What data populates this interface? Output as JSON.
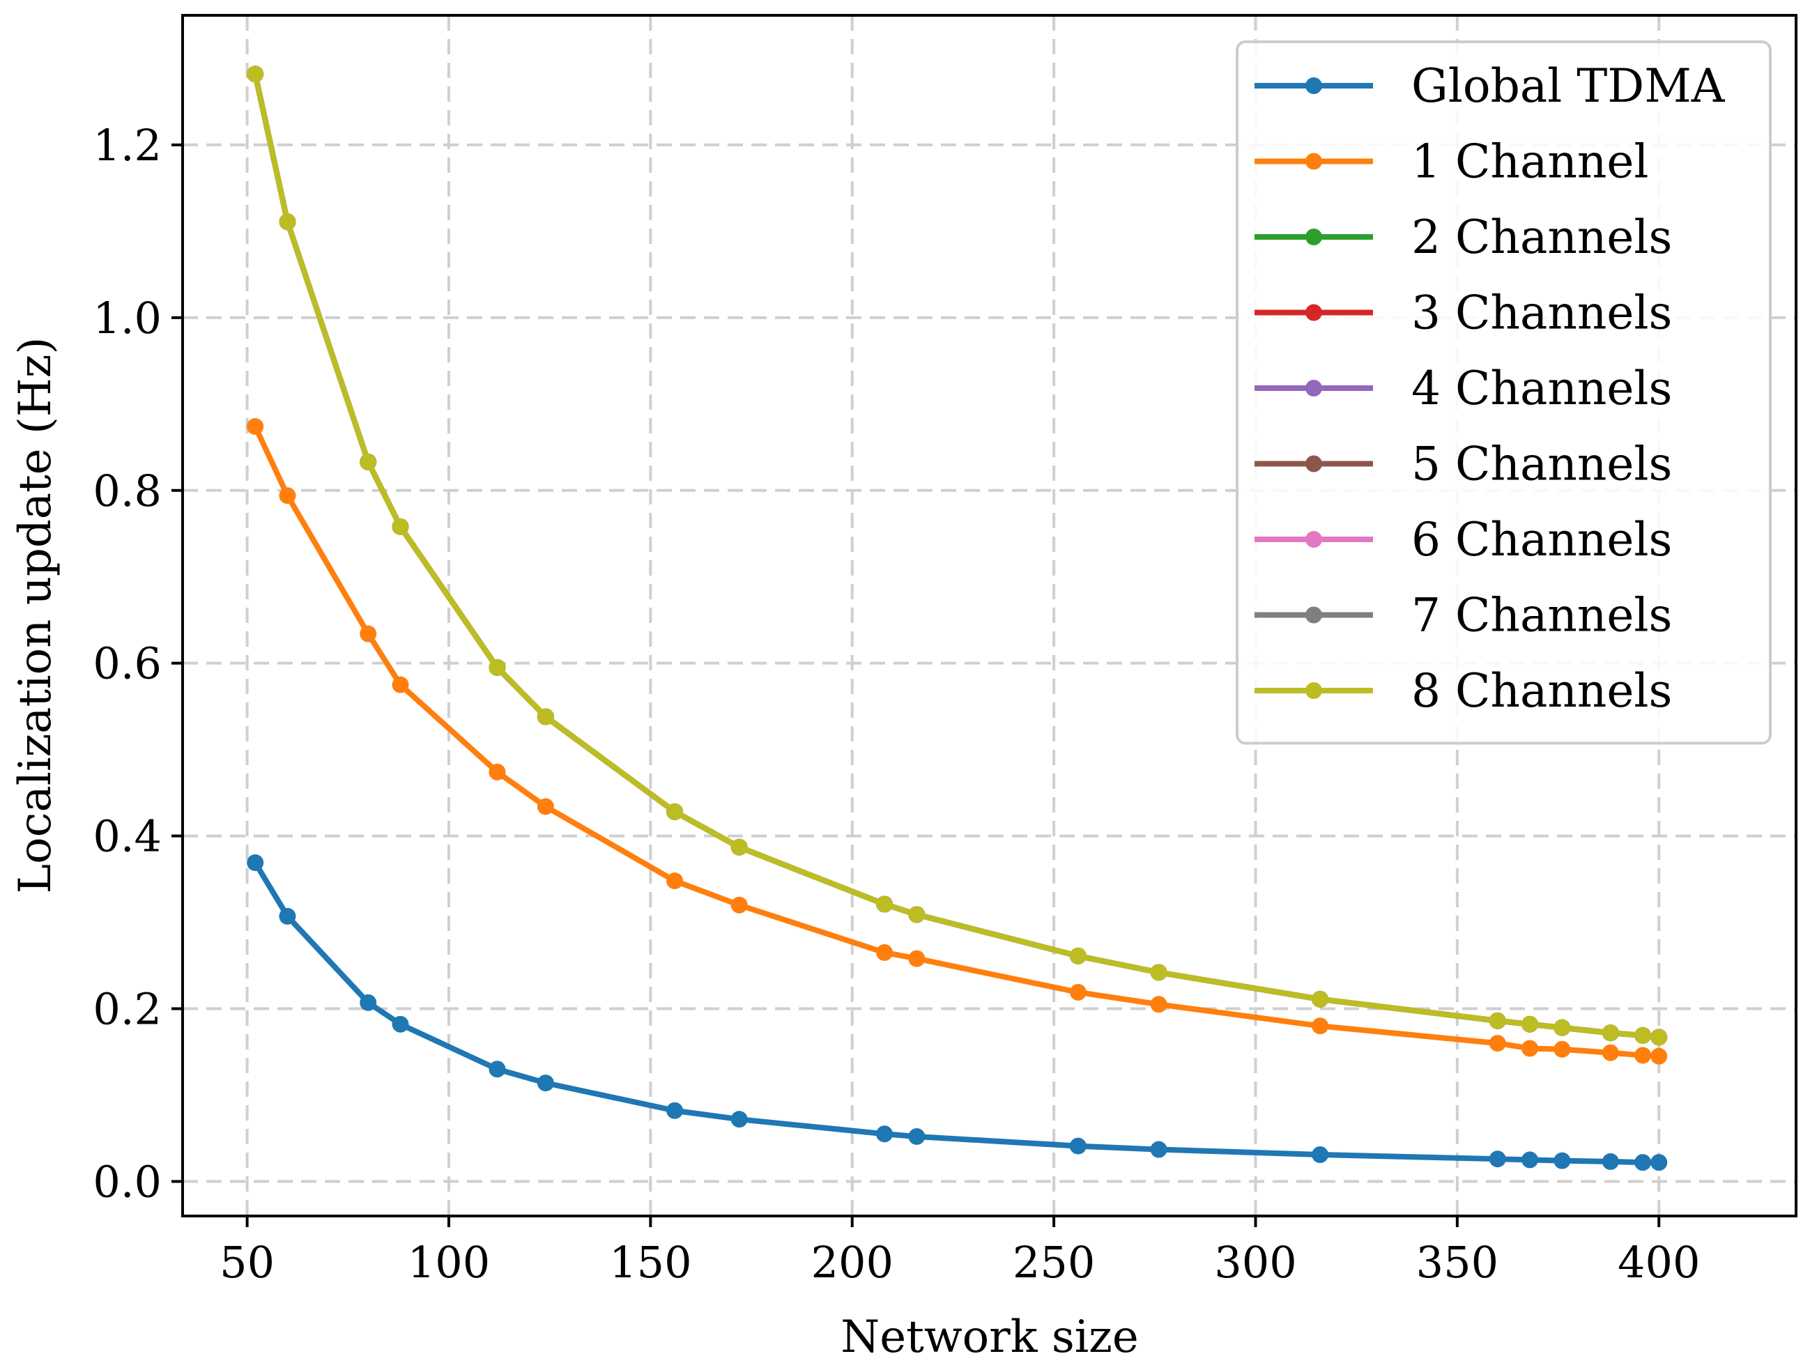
{
  "chart_data": {
    "type": "line",
    "xlabel": "Network size",
    "ylabel": "Localization update (Hz)",
    "xlim": [
      34,
      434
    ],
    "ylim": [
      -0.04,
      1.35
    ],
    "x_ticks": [
      "50",
      "100",
      "150",
      "200",
      "250",
      "300",
      "350",
      "400"
    ],
    "y_ticks": [
      "0.0",
      "0.2",
      "0.4",
      "0.6",
      "0.8",
      "1.0",
      "1.2"
    ],
    "grid": true,
    "legend_position": "top-right",
    "x": [
      52,
      60,
      80,
      88,
      112,
      124,
      156,
      172,
      208,
      216,
      256,
      276,
      316,
      360,
      368,
      376,
      388,
      396,
      400
    ],
    "series": [
      {
        "name": "Global TDMA",
        "color": "#1f77b4",
        "values": [
          0.369,
          0.307,
          0.207,
          0.182,
          0.13,
          0.114,
          0.082,
          0.072,
          0.055,
          0.052,
          0.041,
          0.037,
          0.031,
          0.026,
          0.025,
          0.024,
          0.023,
          0.022,
          0.022
        ]
      },
      {
        "name": "1 Channel",
        "color": "#ff7f0e",
        "values": [
          0.874,
          0.794,
          0.634,
          0.575,
          0.474,
          0.434,
          0.348,
          0.32,
          0.265,
          0.258,
          0.219,
          0.205,
          0.18,
          0.16,
          0.154,
          0.153,
          0.149,
          0.146,
          0.145
        ]
      },
      {
        "name": "2 Channels",
        "color": "#2ca02c",
        "values": [
          1.282,
          1.111,
          0.833,
          0.758,
          0.595,
          0.538,
          0.428,
          0.387,
          0.321,
          0.309,
          0.261,
          0.242,
          0.211,
          0.186,
          0.182,
          0.178,
          0.172,
          0.169,
          0.167
        ]
      },
      {
        "name": "3 Channels",
        "color": "#d62728",
        "values": [
          1.282,
          1.111,
          0.833,
          0.758,
          0.595,
          0.538,
          0.428,
          0.387,
          0.321,
          0.309,
          0.261,
          0.242,
          0.211,
          0.186,
          0.182,
          0.178,
          0.172,
          0.169,
          0.167
        ]
      },
      {
        "name": "4 Channels",
        "color": "#9467bd",
        "values": [
          1.282,
          1.111,
          0.833,
          0.758,
          0.595,
          0.538,
          0.428,
          0.387,
          0.321,
          0.309,
          0.261,
          0.242,
          0.211,
          0.186,
          0.182,
          0.178,
          0.172,
          0.169,
          0.167
        ]
      },
      {
        "name": "5 Channels",
        "color": "#8c564b",
        "values": [
          1.282,
          1.111,
          0.833,
          0.758,
          0.595,
          0.538,
          0.428,
          0.387,
          0.321,
          0.309,
          0.261,
          0.242,
          0.211,
          0.186,
          0.182,
          0.178,
          0.172,
          0.169,
          0.167
        ]
      },
      {
        "name": "6 Channels",
        "color": "#e377c2",
        "values": [
          1.282,
          1.111,
          0.833,
          0.758,
          0.595,
          0.538,
          0.428,
          0.387,
          0.321,
          0.309,
          0.261,
          0.242,
          0.211,
          0.186,
          0.182,
          0.178,
          0.172,
          0.169,
          0.167
        ]
      },
      {
        "name": "7 Channels",
        "color": "#7f7f7f",
        "values": [
          1.282,
          1.111,
          0.833,
          0.758,
          0.595,
          0.538,
          0.428,
          0.387,
          0.321,
          0.309,
          0.261,
          0.242,
          0.211,
          0.186,
          0.182,
          0.178,
          0.172,
          0.169,
          0.167
        ]
      },
      {
        "name": "8 Channels",
        "color": "#bcbd22",
        "values": [
          1.282,
          1.111,
          0.833,
          0.758,
          0.595,
          0.538,
          0.428,
          0.387,
          0.321,
          0.309,
          0.261,
          0.242,
          0.211,
          0.186,
          0.182,
          0.178,
          0.172,
          0.169,
          0.167
        ]
      }
    ]
  }
}
